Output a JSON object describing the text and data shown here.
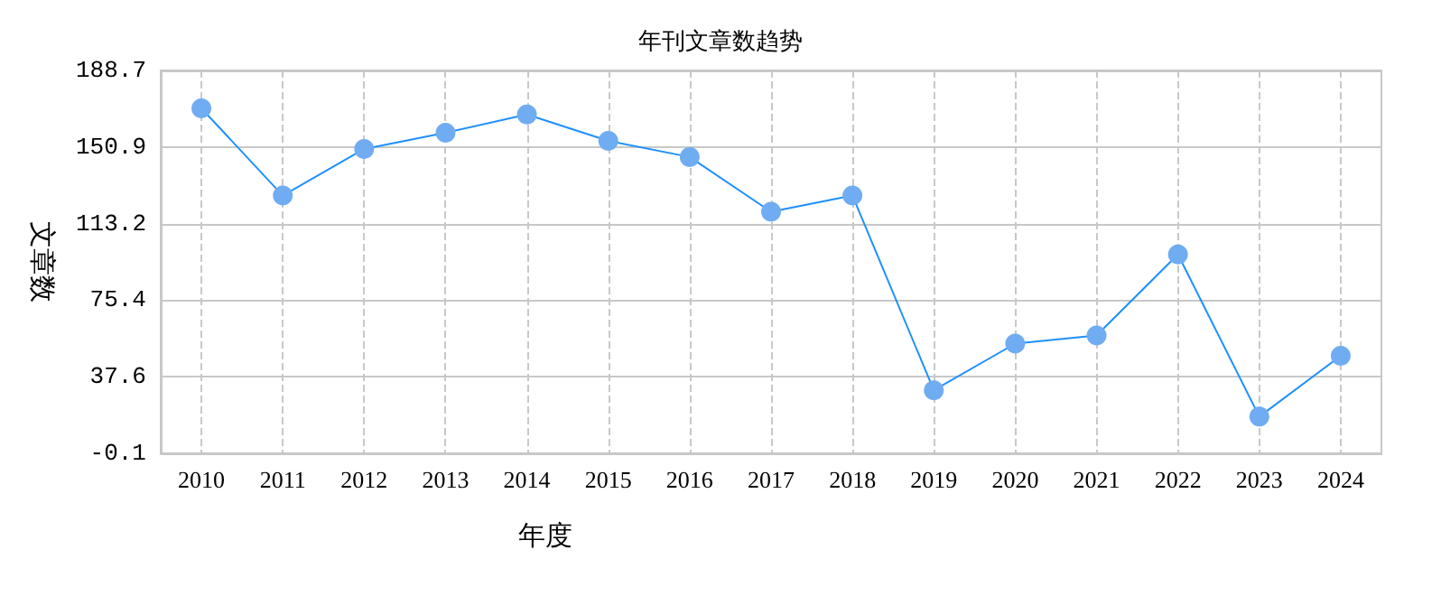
{
  "chart_data": {
    "type": "line",
    "title": "年刊文章数趋势",
    "xlabel": "年度",
    "ylabel": "文章数",
    "categories": [
      "2010",
      "2011",
      "2012",
      "2013",
      "2014",
      "2015",
      "2016",
      "2017",
      "2018",
      "2019",
      "2020",
      "2021",
      "2022",
      "2023",
      "2024"
    ],
    "series": [
      {
        "color": "#1e90ff",
        "values": [
          170,
          127,
          150,
          158,
          167,
          154,
          146,
          119,
          127,
          31,
          54,
          58,
          98,
          18,
          48
        ]
      }
    ],
    "ylim": [
      -0.1,
      188.7
    ],
    "yticks": [
      -0.1,
      37.6,
      75.4,
      113.2,
      150.9,
      188.7
    ],
    "grid": true,
    "marker": "circle",
    "line_style": "solid"
  }
}
